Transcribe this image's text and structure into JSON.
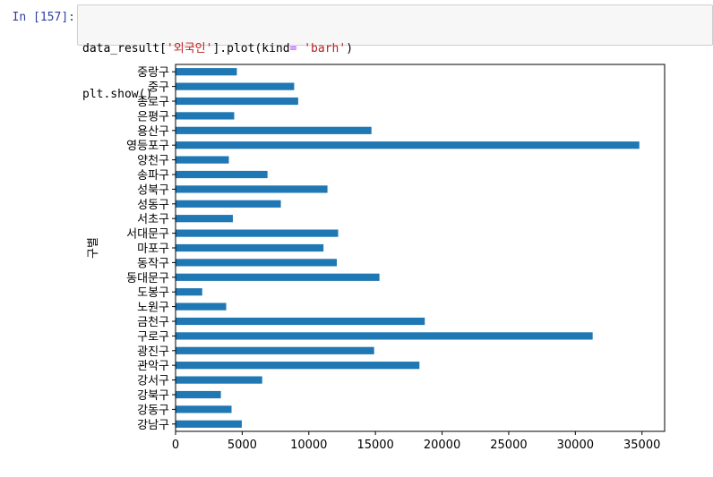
{
  "cell": {
    "prompt": "In [157]:",
    "code": {
      "line1": {
        "p1": "data_result[",
        "p2": "'외국인'",
        "p3": "].plot(kind",
        "p4": "=",
        "p5": " ",
        "p6": "'barh'",
        "p7": ")"
      },
      "line2": "plt.show()"
    }
  },
  "chart_data": {
    "type": "bar",
    "orientation": "horizontal",
    "ylabel": "구별",
    "xlabel": "",
    "title": "",
    "xlim": [
      0,
      36700
    ],
    "xticks": [
      0,
      5000,
      10000,
      15000,
      20000,
      25000,
      30000,
      35000
    ],
    "categories": [
      "강남구",
      "강동구",
      "강북구",
      "강서구",
      "관악구",
      "광진구",
      "구로구",
      "금천구",
      "노원구",
      "도봉구",
      "동대문구",
      "동작구",
      "마포구",
      "서대문구",
      "서초구",
      "성동구",
      "성북구",
      "송파구",
      "양천구",
      "영등포구",
      "용산구",
      "은평구",
      "종로구",
      "중구",
      "중랑구"
    ],
    "values": [
      4970,
      4200,
      3400,
      6500,
      18300,
      14900,
      31300,
      18700,
      3800,
      2000,
      15300,
      12100,
      11100,
      12200,
      4300,
      7900,
      11400,
      6900,
      4000,
      34800,
      14700,
      4400,
      9200,
      8900,
      4600
    ],
    "bar_color": "#1f77b4",
    "grid": false,
    "legend": false
  }
}
